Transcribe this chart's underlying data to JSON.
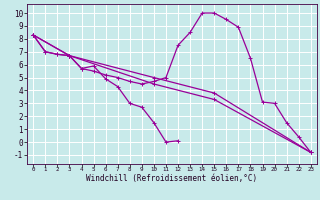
{
  "background_color": "#c8eaea",
  "grid_color": "#ffffff",
  "line_color": "#990099",
  "xlabel": "Windchill (Refroidissement éolien,°C)",
  "ylabel_ticks": [
    -1,
    0,
    1,
    2,
    3,
    4,
    5,
    6,
    7,
    8,
    9,
    10
  ],
  "xlabel_ticks": [
    0,
    1,
    2,
    3,
    4,
    5,
    6,
    7,
    8,
    9,
    10,
    11,
    12,
    13,
    14,
    15,
    16,
    17,
    18,
    19,
    20,
    21,
    22,
    23
  ],
  "xlim": [
    -0.5,
    23.5
  ],
  "ylim": [
    -1.7,
    10.7
  ],
  "series1": [
    [
      0,
      8.3
    ],
    [
      1,
      7.0
    ],
    [
      2,
      6.8
    ],
    [
      3,
      6.7
    ],
    [
      4,
      5.7
    ],
    [
      5,
      5.9
    ],
    [
      6,
      4.9
    ],
    [
      7,
      4.3
    ],
    [
      8,
      3.0
    ],
    [
      9,
      2.7
    ],
    [
      10,
      1.5
    ],
    [
      11,
      0.0
    ],
    [
      12,
      0.1
    ]
  ],
  "series2": [
    [
      0,
      8.3
    ],
    [
      1,
      7.0
    ],
    [
      2,
      6.8
    ],
    [
      3,
      6.7
    ],
    [
      4,
      5.7
    ],
    [
      5,
      5.5
    ],
    [
      6,
      5.2
    ],
    [
      7,
      5.0
    ],
    [
      8,
      4.7
    ],
    [
      9,
      4.5
    ],
    [
      10,
      4.7
    ],
    [
      11,
      5.0
    ],
    [
      12,
      7.5
    ],
    [
      13,
      8.5
    ],
    [
      14,
      10.0
    ],
    [
      15,
      10.0
    ],
    [
      16,
      9.5
    ],
    [
      17,
      8.9
    ],
    [
      18,
      6.5
    ],
    [
      19,
      3.1
    ],
    [
      20,
      3.0
    ],
    [
      21,
      1.5
    ],
    [
      22,
      0.4
    ],
    [
      23,
      -0.8
    ]
  ],
  "series3": [
    [
      0,
      8.3
    ],
    [
      3,
      6.7
    ],
    [
      10,
      5.0
    ],
    [
      15,
      3.8
    ],
    [
      23,
      -0.8
    ]
  ],
  "series4": [
    [
      0,
      8.3
    ],
    [
      3,
      6.7
    ],
    [
      10,
      4.5
    ],
    [
      15,
      3.3
    ],
    [
      23,
      -0.8
    ]
  ],
  "xlabel_fontsize": 5.5,
  "ylabel_fontsize": 5.5,
  "xtick_fontsize": 4.2,
  "ytick_fontsize": 5.5
}
